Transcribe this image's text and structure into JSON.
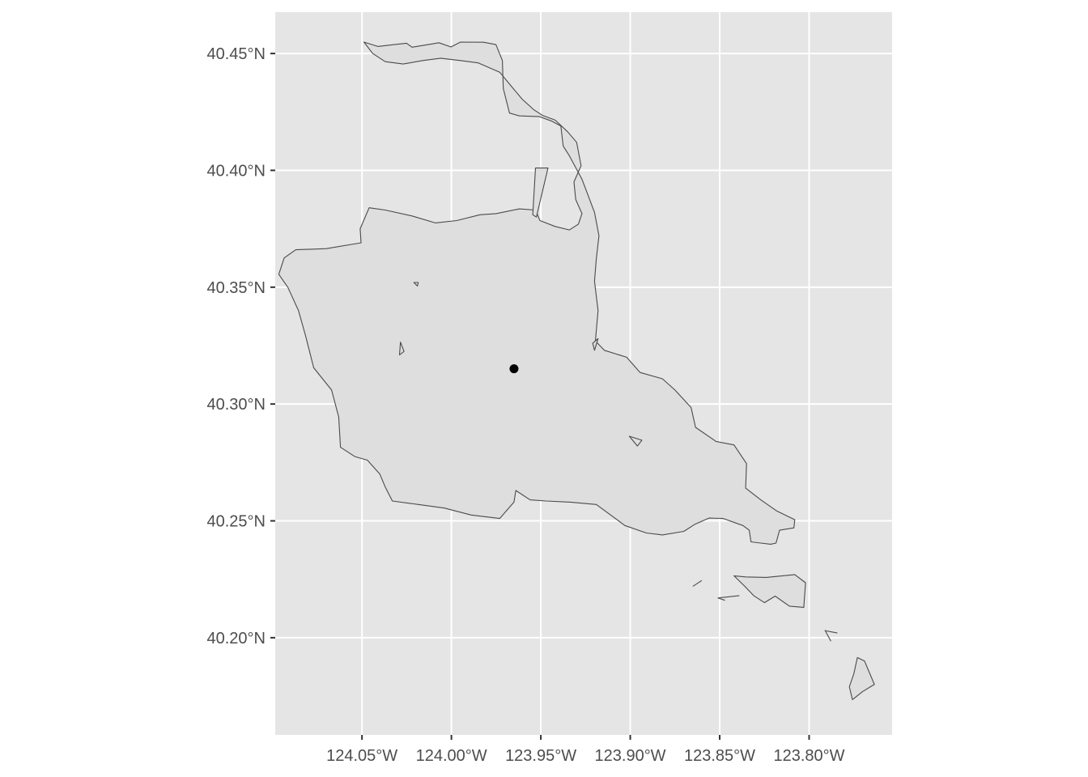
{
  "colors": {
    "panel_background": "#e5e5e5",
    "grid_line": "#ffffff",
    "polygon_fill": "#dedede",
    "polygon_stroke": "#4a4a4a",
    "point": "#000000",
    "tick_label": "#4d4d4d"
  },
  "axes": {
    "x_range_deg": [
      -124.0985,
      -123.7536
    ],
    "y_range_deg": [
      40.1584,
      40.4677
    ],
    "x_ticks": [
      {
        "value": -124.05,
        "label": "124.05°W"
      },
      {
        "value": -124.0,
        "label": "124.00°W"
      },
      {
        "value": -123.95,
        "label": "123.95°W"
      },
      {
        "value": -123.9,
        "label": "123.90°W"
      },
      {
        "value": -123.85,
        "label": "123.85°W"
      },
      {
        "value": -123.8,
        "label": "123.80°W"
      }
    ],
    "y_ticks": [
      {
        "value": 40.45,
        "label": "40.45°N"
      },
      {
        "value": 40.4,
        "label": "40.40°N"
      },
      {
        "value": 40.35,
        "label": "40.35°N"
      },
      {
        "value": 40.3,
        "label": "40.30°N"
      },
      {
        "value": 40.25,
        "label": "40.25°N"
      },
      {
        "value": 40.2,
        "label": "40.20°N"
      }
    ],
    "grid": true
  },
  "map_data": {
    "features": [
      {
        "type": "polygon",
        "coords": [
          [
            -124.0489,
            40.4549
          ],
          [
            -124.0411,
            40.453
          ],
          [
            -124.032,
            40.4538
          ],
          [
            -124.0251,
            40.4544
          ],
          [
            -124.022,
            40.4527
          ],
          [
            -124.014,
            40.4537
          ],
          [
            -124.007,
            40.4546
          ],
          [
            -124.0003,
            40.4528
          ],
          [
            -123.9949,
            40.4549
          ],
          [
            -123.982,
            40.4548
          ],
          [
            -123.9751,
            40.4538
          ],
          [
            -123.9715,
            40.447
          ],
          [
            -123.971,
            40.435
          ],
          [
            -123.9675,
            40.4245
          ],
          [
            -123.962,
            40.4233
          ],
          [
            -123.9508,
            40.423
          ],
          [
            -123.9443,
            40.4212
          ],
          [
            -123.9388,
            40.419
          ],
          [
            -123.9375,
            40.4104
          ],
          [
            -123.934,
            40.4062
          ],
          [
            -123.927,
            40.3962
          ],
          [
            -123.92,
            40.382
          ],
          [
            -123.9175,
            40.372
          ],
          [
            -123.919,
            40.362
          ],
          [
            -123.92,
            40.3525
          ],
          [
            -123.918,
            40.34
          ],
          [
            -123.9195,
            40.327
          ],
          [
            -123.9145,
            40.323
          ],
          [
            -123.902,
            40.32
          ],
          [
            -123.8945,
            40.3135
          ],
          [
            -123.882,
            40.3108
          ],
          [
            -123.875,
            40.306
          ],
          [
            -123.866,
            40.2985
          ],
          [
            -123.8635,
            40.29
          ],
          [
            -123.852,
            40.284
          ],
          [
            -123.842,
            40.2825
          ],
          [
            -123.835,
            40.2745
          ],
          [
            -123.8355,
            40.264
          ],
          [
            -123.827,
            40.259
          ],
          [
            -123.818,
            40.2542
          ],
          [
            -123.808,
            40.2505
          ],
          [
            -123.8085,
            40.247
          ],
          [
            -123.8165,
            40.246
          ],
          [
            -123.8185,
            40.2405
          ],
          [
            -123.8215,
            40.24
          ],
          [
            -123.827,
            40.2405
          ],
          [
            -123.8325,
            40.241
          ],
          [
            -123.8335,
            40.246
          ],
          [
            -123.837,
            40.248
          ],
          [
            -123.848,
            40.251
          ],
          [
            -123.856,
            40.2512
          ],
          [
            -123.864,
            40.2485
          ],
          [
            -123.87,
            40.2455
          ],
          [
            -123.882,
            40.244
          ],
          [
            -123.891,
            40.2448
          ],
          [
            -123.903,
            40.248
          ],
          [
            -123.911,
            40.2525
          ],
          [
            -123.919,
            40.257
          ],
          [
            -123.9335,
            40.258
          ],
          [
            -123.947,
            40.2585
          ],
          [
            -123.956,
            40.259
          ],
          [
            -123.964,
            40.263
          ],
          [
            -123.965,
            40.258
          ],
          [
            -123.973,
            40.251
          ],
          [
            -123.989,
            40.2525
          ],
          [
            -124.004,
            40.2555
          ],
          [
            -124.0185,
            40.257
          ],
          [
            -124.033,
            40.2585
          ],
          [
            -124.037,
            40.2645
          ],
          [
            -124.04,
            40.27
          ],
          [
            -124.047,
            40.276
          ],
          [
            -124.054,
            40.2775
          ],
          [
            -124.062,
            40.2815
          ],
          [
            -124.063,
            40.2945
          ],
          [
            -124.067,
            40.306
          ],
          [
            -124.077,
            40.3155
          ],
          [
            -124.0815,
            40.329
          ],
          [
            -124.0855,
            40.34
          ],
          [
            -124.0915,
            40.35
          ],
          [
            -124.0965,
            40.3555
          ],
          [
            -124.0935,
            40.3625
          ],
          [
            -124.087,
            40.366
          ],
          [
            -124.07,
            40.3665
          ],
          [
            -124.0505,
            40.369
          ],
          [
            -124.051,
            40.375
          ],
          [
            -124.046,
            40.384
          ],
          [
            -124.037,
            40.383
          ],
          [
            -124.022,
            40.3805
          ],
          [
            -124.009,
            40.3775
          ],
          [
            -123.997,
            40.3785
          ],
          [
            -123.984,
            40.381
          ],
          [
            -123.975,
            40.3815
          ],
          [
            -123.962,
            40.3835
          ],
          [
            -123.953,
            40.383
          ],
          [
            -123.9505,
            40.3785
          ],
          [
            -123.942,
            40.376
          ],
          [
            -123.934,
            40.3745
          ],
          [
            -123.929,
            40.377
          ],
          [
            -123.927,
            40.3815
          ],
          [
            -123.9305,
            40.3875
          ],
          [
            -123.9315,
            40.395
          ],
          [
            -123.9275,
            40.402
          ],
          [
            -123.93,
            40.412
          ],
          [
            -123.935,
            40.4165
          ],
          [
            -123.942,
            40.4215
          ],
          [
            -123.949,
            40.4235
          ],
          [
            -123.954,
            40.426
          ],
          [
            -123.9605,
            40.4305
          ],
          [
            -123.9665,
            40.436
          ],
          [
            -123.973,
            40.442
          ],
          [
            -123.985,
            40.446
          ],
          [
            -123.995,
            40.447
          ],
          [
            -124.006,
            40.448
          ],
          [
            -124.016,
            40.447
          ],
          [
            -124.027,
            40.4455
          ],
          [
            -124.037,
            40.4465
          ],
          [
            -124.044,
            40.45
          ],
          [
            -124.0489,
            40.4549
          ]
        ]
      },
      {
        "type": "polygon",
        "coords": [
          [
            -123.9525,
            40.38
          ],
          [
            -123.946,
            40.401
          ],
          [
            -123.953,
            40.401
          ],
          [
            -123.9545,
            40.381
          ],
          [
            -123.9525,
            40.38
          ]
        ]
      },
      {
        "type": "polygon",
        "coords": [
          [
            -123.842,
            40.2265
          ],
          [
            -123.8355,
            40.226
          ],
          [
            -123.824,
            40.2258
          ],
          [
            -123.808,
            40.227
          ],
          [
            -123.802,
            40.2235
          ],
          [
            -123.803,
            40.213
          ],
          [
            -123.811,
            40.2135
          ],
          [
            -123.819,
            40.2178
          ],
          [
            -123.825,
            40.215
          ],
          [
            -123.831,
            40.218
          ],
          [
            -123.836,
            40.222
          ],
          [
            -123.842,
            40.2265
          ]
        ]
      },
      {
        "type": "polygon",
        "coords": [
          [
            -123.773,
            40.1915
          ],
          [
            -123.769,
            40.19
          ],
          [
            -123.7635,
            40.18
          ],
          [
            -123.77,
            40.177
          ],
          [
            -123.7758,
            40.1735
          ],
          [
            -123.7775,
            40.179
          ],
          [
            -123.775,
            40.1845
          ],
          [
            -123.773,
            40.1915
          ]
        ]
      },
      {
        "type": "line",
        "coords": [
          [
            -123.7842,
            40.202
          ],
          [
            -123.791,
            40.203
          ],
          [
            -123.7878,
            40.1985
          ]
        ]
      },
      {
        "type": "line",
        "coords": [
          [
            -123.839,
            40.218
          ],
          [
            -123.851,
            40.217
          ],
          [
            -123.847,
            40.216
          ]
        ]
      },
      {
        "type": "line",
        "coords": [
          [
            -123.86,
            40.2245
          ],
          [
            -123.865,
            40.222
          ]
        ]
      },
      {
        "type": "polygon",
        "coords": [
          [
            -123.9005,
            40.2862
          ],
          [
            -123.8935,
            40.2845
          ],
          [
            -123.896,
            40.282
          ],
          [
            -123.9005,
            40.2862
          ]
        ]
      },
      {
        "type": "polygon",
        "coords": [
          [
            -123.918,
            40.328
          ],
          [
            -123.921,
            40.326
          ],
          [
            -123.92,
            40.323
          ],
          [
            -123.918,
            40.328
          ]
        ]
      },
      {
        "type": "polygon",
        "coords": [
          [
            -124.021,
            40.352
          ],
          [
            -124.0185,
            40.352
          ],
          [
            -124.019,
            40.3505
          ],
          [
            -124.021,
            40.352
          ]
        ]
      },
      {
        "type": "polygon",
        "coords": [
          [
            -124.0285,
            40.3265
          ],
          [
            -124.0265,
            40.3225
          ],
          [
            -124.029,
            40.321
          ],
          [
            -124.0285,
            40.3265
          ]
        ]
      }
    ],
    "points": [
      {
        "lon": -123.965,
        "lat": 40.3151
      }
    ]
  }
}
